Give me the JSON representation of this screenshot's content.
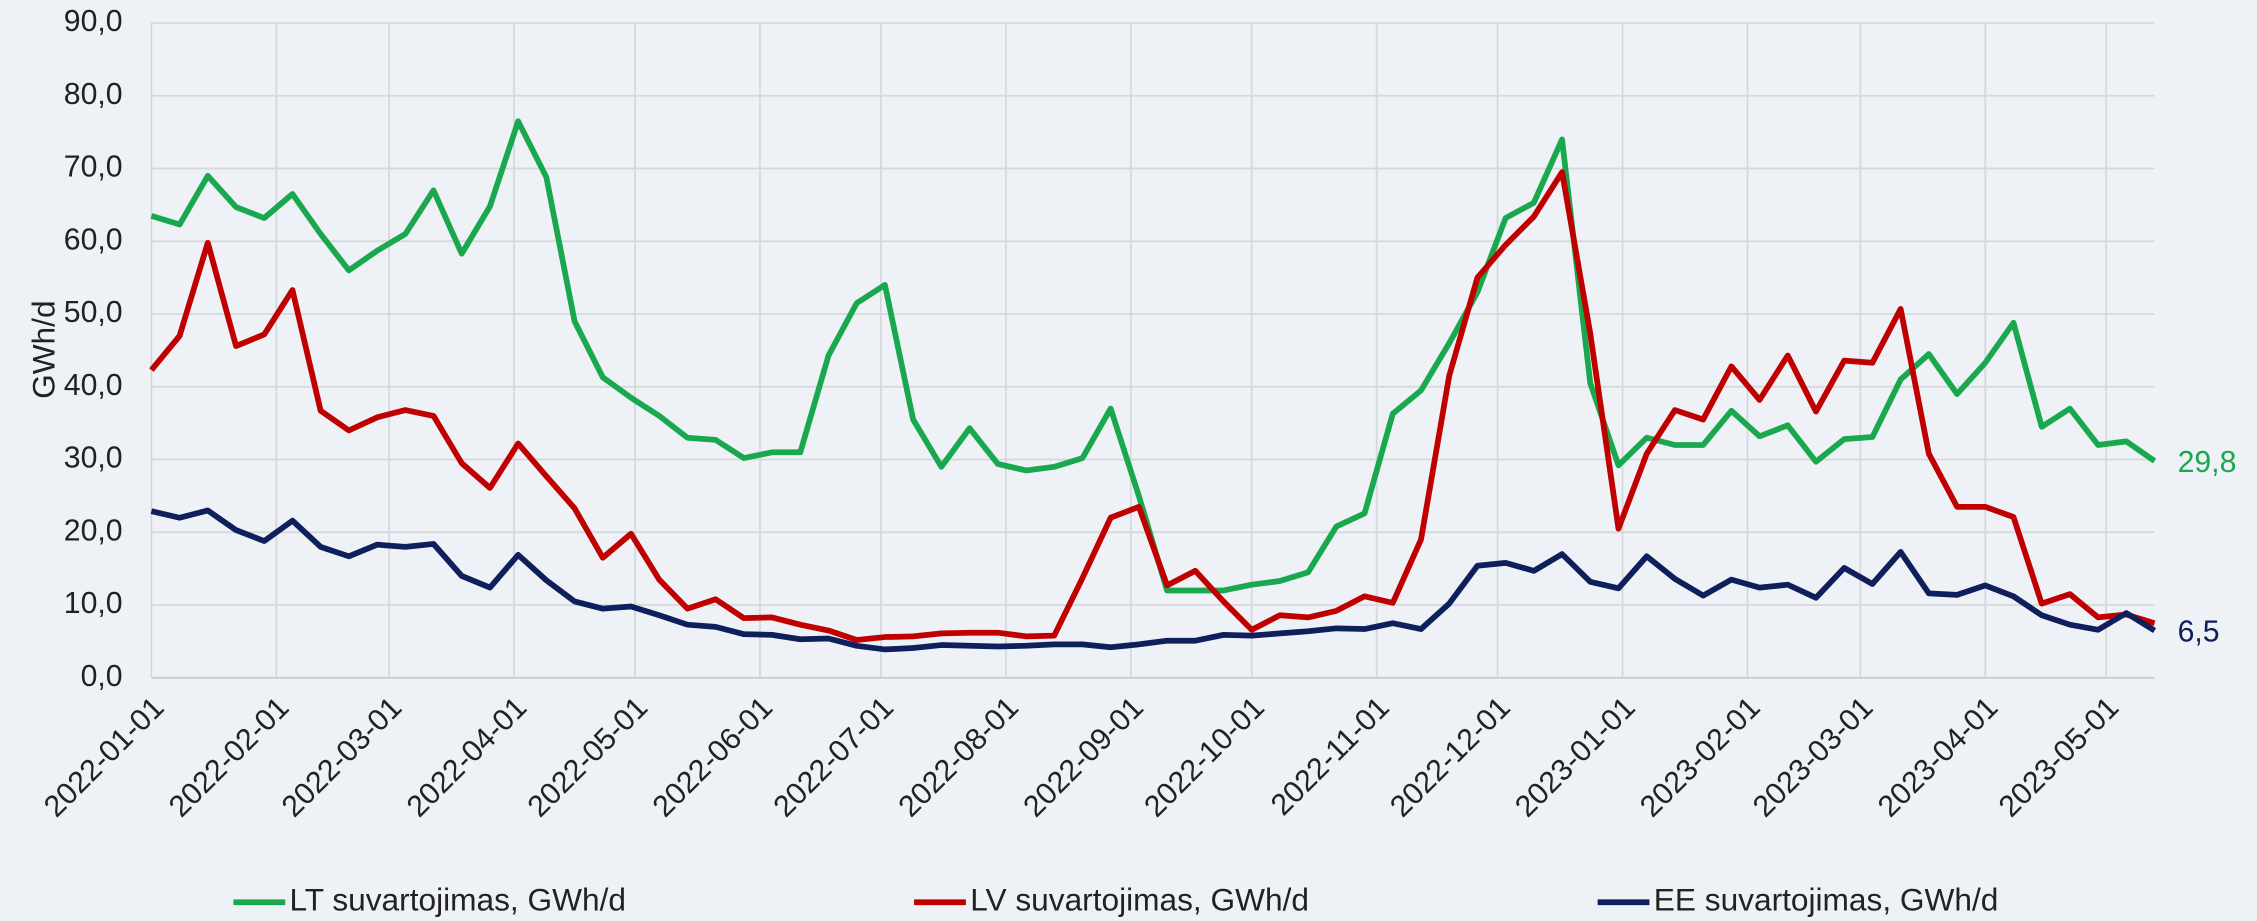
{
  "chart_data": {
    "type": "line",
    "y_label": "GWh/d",
    "x": [
      "2022-01-01",
      "2022-01-08",
      "2022-01-15",
      "2022-01-22",
      "2022-01-29",
      "2022-02-05",
      "2022-02-12",
      "2022-02-19",
      "2022-02-26",
      "2022-03-05",
      "2022-03-12",
      "2022-03-19",
      "2022-03-26",
      "2022-04-02",
      "2022-04-09",
      "2022-04-16",
      "2022-04-23",
      "2022-04-30",
      "2022-05-07",
      "2022-05-14",
      "2022-05-21",
      "2022-05-28",
      "2022-06-04",
      "2022-06-11",
      "2022-06-18",
      "2022-06-25",
      "2022-07-02",
      "2022-07-09",
      "2022-07-16",
      "2022-07-23",
      "2022-07-30",
      "2022-08-06",
      "2022-08-13",
      "2022-08-20",
      "2022-08-27",
      "2022-09-03",
      "2022-09-10",
      "2022-09-17",
      "2022-09-24",
      "2022-10-01",
      "2022-10-08",
      "2022-10-15",
      "2022-10-22",
      "2022-10-29",
      "2022-11-05",
      "2022-11-12",
      "2022-11-19",
      "2022-11-26",
      "2022-12-03",
      "2022-12-10",
      "2022-12-17",
      "2022-12-24",
      "2022-12-31",
      "2023-01-07",
      "2023-01-14",
      "2023-01-21",
      "2023-01-28",
      "2023-02-04",
      "2023-02-11",
      "2023-02-18",
      "2023-02-25",
      "2023-03-04",
      "2023-03-11",
      "2023-03-18",
      "2023-03-25",
      "2023-04-01",
      "2023-04-08",
      "2023-04-15",
      "2023-04-22",
      "2023-04-29",
      "2023-05-06",
      "2023-05-13"
    ],
    "xlim": [
      "2022-01-01",
      "2023-05-13"
    ],
    "xticks": [
      "2022-01-01",
      "2022-02-01",
      "2022-03-01",
      "2022-04-01",
      "2022-05-01",
      "2022-06-01",
      "2022-07-01",
      "2022-08-01",
      "2022-09-01",
      "2022-10-01",
      "2022-11-01",
      "2022-12-01",
      "2023-01-01",
      "2023-02-01",
      "2023-03-01",
      "2023-04-01",
      "2023-05-01"
    ],
    "ylim": [
      0,
      90
    ],
    "yticks": [
      {
        "value": 0,
        "label": "0,0"
      },
      {
        "value": 10,
        "label": "10,0"
      },
      {
        "value": 20,
        "label": "20,0"
      },
      {
        "value": 30,
        "label": "30,0"
      },
      {
        "value": 40,
        "label": "40,0"
      },
      {
        "value": 50,
        "label": "50,0"
      },
      {
        "value": 60,
        "label": "60,0"
      },
      {
        "value": 70,
        "label": "70,0"
      },
      {
        "value": 80,
        "label": "80,0"
      },
      {
        "value": 90,
        "label": "90,0"
      }
    ],
    "grid": true,
    "legend": "bottom",
    "series": [
      {
        "name": "LT suvartojimas, GWh/d",
        "color": "#1aa84f",
        "end_label": "29,8",
        "values": [
          63.5,
          62.3,
          69,
          64.7,
          63.2,
          66.5,
          61,
          56,
          58.7,
          61,
          67,
          58.3,
          64.8,
          76.5,
          68.8,
          49,
          41.3,
          38.5,
          36,
          33,
          32.7,
          30.2,
          31,
          31,
          44.3,
          51.5,
          54,
          35.5,
          29,
          34.3,
          29.4,
          28.5,
          29,
          30.2,
          37,
          25,
          12,
          12,
          12,
          12.8,
          13.3,
          14.5,
          20.8,
          22.6,
          36.3,
          39.5,
          46,
          53,
          63.2,
          65.3,
          74,
          40.5,
          29.2,
          33,
          32,
          32,
          36.7,
          33.2,
          34.7,
          29.7,
          32.8,
          33.1,
          41,
          44.5,
          39,
          43.3,
          48.8,
          34.5,
          37,
          32,
          32.5,
          29.8
        ]
      },
      {
        "name": "LV suvartojimas, GWh/d",
        "color": "#c00000",
        "values": [
          42.3,
          47,
          59.8,
          45.6,
          47.2,
          53.3,
          36.7,
          34,
          35.8,
          36.8,
          36,
          29.5,
          26.1,
          32.2,
          27.7,
          23.3,
          16.5,
          19.8,
          13.5,
          9.5,
          10.8,
          8.2,
          8.3,
          7.3,
          6.5,
          5.2,
          5.6,
          5.7,
          6.1,
          6.2,
          6.2,
          5.7,
          5.8,
          13.7,
          22,
          23.5,
          12.7,
          14.7,
          10.5,
          6.6,
          8.6,
          8.3,
          9.2,
          11.2,
          10.3,
          19,
          41.5,
          55,
          59.5,
          63.4,
          69.5,
          47.3,
          20.5,
          30.8,
          36.8,
          35.5,
          42.8,
          38.2,
          44.3,
          36.6,
          43.6,
          43.3,
          50.7,
          30.8,
          23.5,
          23.5,
          22.1,
          10.2,
          11.5,
          8.3,
          8.7,
          7.5
        ]
      },
      {
        "name": "EE suvartojimas, GWh/d",
        "color": "#0e1f5b",
        "end_label": "6,5",
        "values": [
          22.9,
          22,
          23,
          20.3,
          18.8,
          21.6,
          18,
          16.7,
          18.3,
          18,
          18.4,
          14,
          12.4,
          16.9,
          13.4,
          10.5,
          9.5,
          9.8,
          8.6,
          7.3,
          7,
          6,
          5.9,
          5.3,
          5.4,
          4.4,
          3.9,
          4.1,
          4.5,
          4.4,
          4.3,
          4.4,
          4.6,
          4.6,
          4.2,
          4.6,
          5.1,
          5.1,
          5.9,
          5.8,
          6.1,
          6.4,
          6.8,
          6.7,
          7.5,
          6.7,
          10.2,
          15.4,
          15.8,
          14.7,
          17,
          13.2,
          12.3,
          16.7,
          13.6,
          11.3,
          13.5,
          12.4,
          12.8,
          11,
          15.1,
          12.9,
          17.3,
          11.6,
          11.4,
          12.7,
          11.2,
          8.6,
          7.3,
          6.6,
          8.9,
          6.5
        ]
      }
    ]
  }
}
